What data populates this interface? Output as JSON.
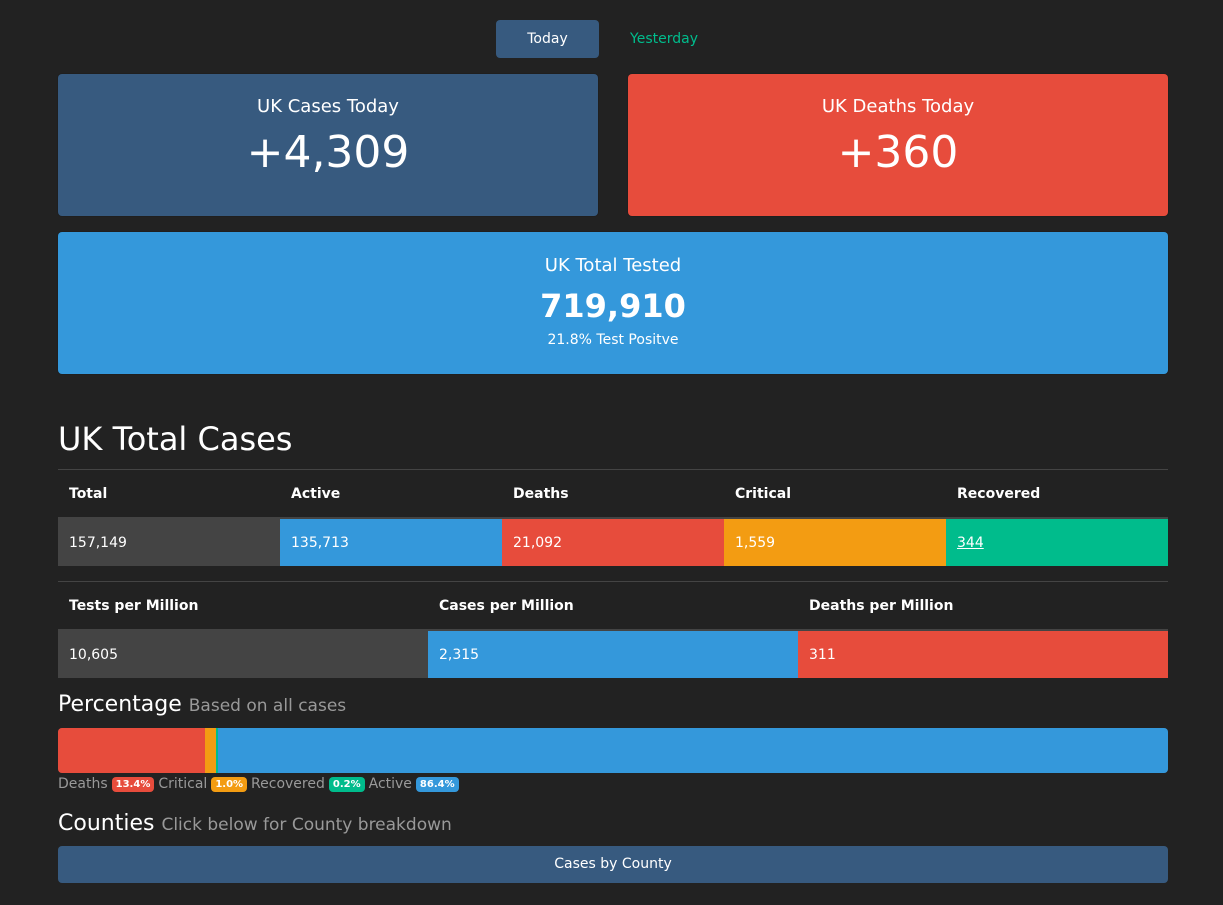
{
  "tabs": {
    "today": "Today",
    "yesterday": "Yesterday"
  },
  "cards": {
    "cases": {
      "title": "UK Cases Today",
      "value": "+4,309"
    },
    "deaths": {
      "title": "UK Deaths Today",
      "value": "+360"
    },
    "tested": {
      "title": "UK Total Tested",
      "value": "719,910",
      "sub": "21.8% Test Positve"
    }
  },
  "totals": {
    "heading": "UK Total Cases",
    "headers": [
      "Total",
      "Active",
      "Deaths",
      "Critical",
      "Recovered"
    ],
    "values": [
      "157,149",
      "135,713",
      "21,092",
      "1,559",
      "344"
    ]
  },
  "per_million": {
    "headers": [
      "Tests per Million",
      "Cases per Million",
      "Deaths per Million"
    ],
    "values": [
      "10,605",
      "2,315",
      "311"
    ]
  },
  "percentage": {
    "heading": "Percentage",
    "subheading": "Based on all cases",
    "segments": [
      {
        "label": "Deaths",
        "badge": "13.4%",
        "value": 13.4,
        "color": "#e74c3c"
      },
      {
        "label": "Critical",
        "badge": "1.0%",
        "value": 1.0,
        "color": "#f39c12"
      },
      {
        "label": "Recovered",
        "badge": "0.2%",
        "value": 0.2,
        "color": "#00bc8c"
      },
      {
        "label": "Active",
        "badge": "86.4%",
        "value": 86.4,
        "color": "#3498db"
      }
    ]
  },
  "counties": {
    "heading": "Counties",
    "subheading": "Click below for County breakdown",
    "button": "Cases by County"
  }
}
